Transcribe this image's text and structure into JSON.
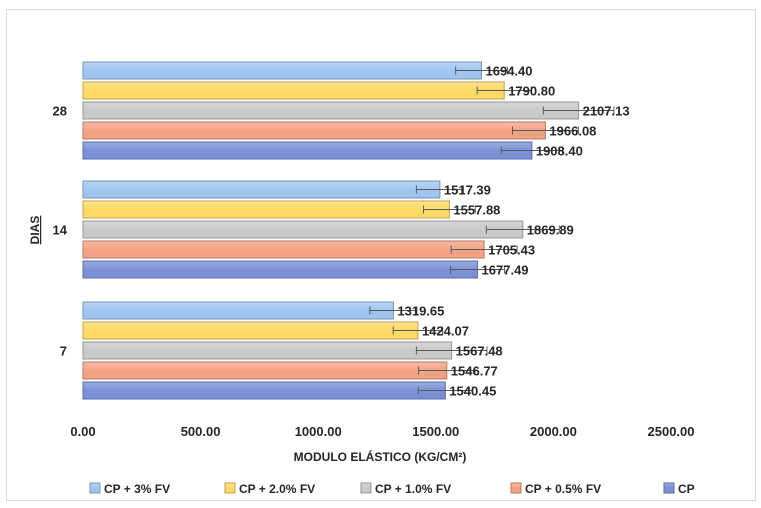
{
  "chart_data": {
    "type": "bar",
    "orientation": "horizontal",
    "title": "",
    "xlabel": "MODULO ELÁSTICO (KG/CM²)",
    "ylabel": "DIAS",
    "xlim": [
      0,
      2500
    ],
    "x_ticks": [
      "0.00",
      "500.00",
      "1000.00",
      "1500.00",
      "2000.00",
      "2500.00"
    ],
    "categories": [
      "7",
      "14",
      "28"
    ],
    "series": [
      {
        "name": "CP",
        "color": "#7b8fd6",
        "values": [
          1540.45,
          1677.49,
          1908.4
        ],
        "labels": [
          "1540.45",
          "1677.49",
          "1908.40"
        ],
        "error": [
          115,
          115,
          130
        ]
      },
      {
        "name": "CP + 0.5% FV",
        "color": "#f4a284",
        "values": [
          1546.77,
          1705.43,
          1966.08
        ],
        "labels": [
          "1546.77",
          "1705.43",
          "1966.08"
        ],
        "error": [
          120,
          140,
          140
        ]
      },
      {
        "name": "CP + 1.0% FV",
        "color": "#c9c9c9",
        "values": [
          1567.48,
          1869.89,
          2107.13
        ],
        "labels": [
          "1567.48",
          "1869.89",
          "2107.13"
        ],
        "error": [
          150,
          155,
          150
        ]
      },
      {
        "name": "CP + 2.0% FV",
        "color": "#ffd966",
        "values": [
          1424.07,
          1557.88,
          1790.8
        ],
        "labels": [
          "1424.07",
          "1557.88",
          "1790.80"
        ],
        "error": [
          105,
          110,
          115
        ]
      },
      {
        "name": "CP + 3% FV",
        "color": "#9fc5f0",
        "values": [
          1319.65,
          1517.39,
          1694.4
        ],
        "labels": [
          "1319.65",
          "1517.39",
          "1694.40"
        ],
        "error": [
          100,
          100,
          110
        ]
      }
    ],
    "legend": {
      "position": "bottom",
      "order": [
        "CP + 3% FV",
        "CP + 2.0% FV",
        "CP + 1.0% FV",
        "CP + 0.5% FV",
        "CP"
      ]
    },
    "grid": false,
    "error_bars": true
  }
}
